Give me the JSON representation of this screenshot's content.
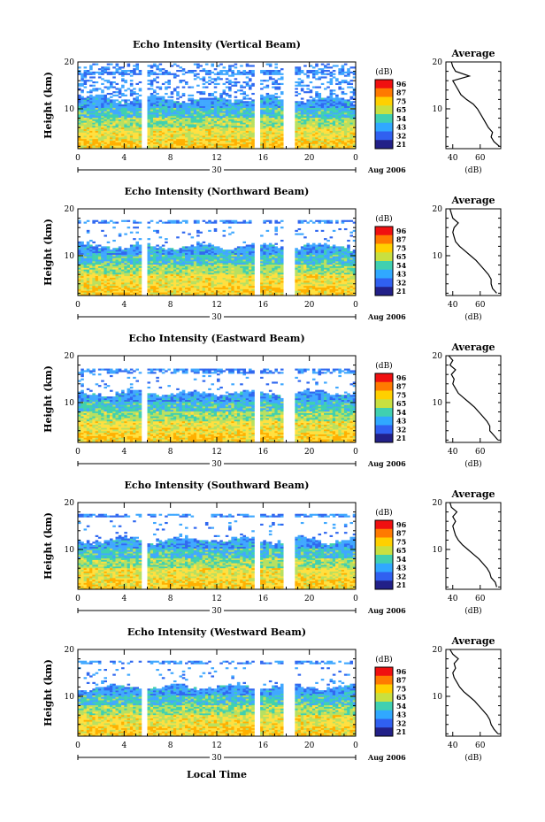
{
  "figure": {
    "colorbar_unit": "(dB)",
    "colorbar_ticks": [
      "96",
      "87",
      "75",
      "65",
      "54",
      "43",
      "32",
      "21"
    ],
    "colorbar_colors": [
      "#f01010",
      "#ff7a00",
      "#ffd000",
      "#c8e040",
      "#40d0b0",
      "#30a8ff",
      "#3060f0",
      "#222088"
    ],
    "heatmap_colors": {
      "strong": "#ffb000",
      "high": "#ffe040",
      "mid": "#b8e060",
      "midlow": "#40d0b0",
      "low": "#40a8ff",
      "weak": "#3068f0"
    },
    "xlabel": "Local Time",
    "date_label": "Aug 2006",
    "date_day": "30",
    "avg_title": "Average",
    "avg_xlabel": "(dB)"
  },
  "chart_data": [
    {
      "type": "heatmap",
      "title": "Echo Intensity (Vertical Beam)",
      "ylabel": "Height (km)",
      "x_ticks": [
        "0",
        "4",
        "8",
        "12",
        "16",
        "20",
        "0"
      ],
      "y_ticks": [
        "20",
        "10"
      ],
      "xlim": [
        0,
        24
      ],
      "ylim": [
        1.5,
        20
      ],
      "data_gaps_hours": [
        [
          5.6,
          5.9
        ],
        [
          15.4,
          15.7
        ],
        [
          17.9,
          18.6
        ]
      ],
      "echo_top_km": 17.5,
      "average_profile": {
        "x_ticks": [
          "40",
          "60"
        ],
        "y_ticks": [
          "20",
          "10"
        ],
        "xlim": [
          35,
          75
        ],
        "height_km": [
          2,
          3,
          4,
          5,
          6,
          7,
          8,
          9,
          10,
          11,
          12,
          13,
          14,
          15,
          16,
          17,
          18,
          19,
          20
        ],
        "db": [
          74,
          70,
          68,
          69,
          66,
          64,
          62,
          60,
          58,
          55,
          50,
          46,
          44,
          42,
          40,
          52,
          42,
          40,
          39
        ]
      }
    },
    {
      "type": "heatmap",
      "title": "Echo Intensity (Northward Beam)",
      "ylabel": "Height (km)",
      "x_ticks": [
        "0",
        "4",
        "8",
        "12",
        "16",
        "20",
        "0"
      ],
      "y_ticks": [
        "20",
        "10"
      ],
      "xlim": [
        0,
        24
      ],
      "ylim": [
        1.5,
        20
      ],
      "data_gaps_hours": [
        [
          5.6,
          5.9
        ],
        [
          15.4,
          15.7
        ],
        [
          17.9,
          18.6
        ]
      ],
      "echo_top_km": 17.0,
      "average_profile": {
        "x_ticks": [
          "40",
          "60"
        ],
        "y_ticks": [
          "20",
          "10"
        ],
        "xlim": [
          35,
          75
        ],
        "height_km": [
          2,
          3,
          4,
          5,
          6,
          7,
          8,
          9,
          10,
          11,
          12,
          13,
          14,
          15,
          16,
          17,
          18,
          19,
          20
        ],
        "db": [
          72,
          69,
          68,
          68,
          66,
          63,
          60,
          57,
          53,
          49,
          45,
          42,
          41,
          40,
          41,
          44,
          40,
          39,
          38
        ]
      }
    },
    {
      "type": "heatmap",
      "title": "Echo Intensity (Eastward Beam)",
      "ylabel": "Height (km)",
      "x_ticks": [
        "0",
        "4",
        "8",
        "12",
        "16",
        "20",
        "0"
      ],
      "y_ticks": [
        "20",
        "10"
      ],
      "xlim": [
        0,
        24
      ],
      "ylim": [
        1.5,
        20
      ],
      "data_gaps_hours": [
        [
          5.6,
          5.9
        ],
        [
          15.4,
          15.7
        ],
        [
          17.9,
          18.6
        ]
      ],
      "echo_top_km": 16.5,
      "average_profile": {
        "x_ticks": [
          "40",
          "60"
        ],
        "y_ticks": [
          "20",
          "10"
        ],
        "xlim": [
          35,
          75
        ],
        "height_km": [
          2,
          3,
          4,
          5,
          6,
          7,
          8,
          9,
          10,
          11,
          12,
          13,
          14,
          15,
          16,
          17,
          18,
          19,
          20
        ],
        "db": [
          73,
          70,
          67,
          67,
          65,
          62,
          59,
          56,
          52,
          48,
          44,
          42,
          40,
          41,
          39,
          42,
          38,
          40,
          37
        ]
      }
    },
    {
      "type": "heatmap",
      "title": "Echo Intensity (Southward Beam)",
      "ylabel": "Height (km)",
      "x_ticks": [
        "0",
        "4",
        "8",
        "12",
        "16",
        "20",
        "0"
      ],
      "y_ticks": [
        "20",
        "10"
      ],
      "xlim": [
        0,
        24
      ],
      "ylim": [
        1.5,
        20
      ],
      "data_gaps_hours": [
        [
          5.6,
          5.9
        ],
        [
          15.4,
          15.7
        ],
        [
          17.9,
          18.6
        ]
      ],
      "echo_top_km": 17.0,
      "average_profile": {
        "x_ticks": [
          "40",
          "60"
        ],
        "y_ticks": [
          "20",
          "10"
        ],
        "xlim": [
          35,
          75
        ],
        "height_km": [
          2,
          3,
          4,
          5,
          6,
          7,
          8,
          9,
          10,
          11,
          12,
          13,
          14,
          15,
          16,
          17,
          18,
          19,
          20
        ],
        "db": [
          72,
          71,
          68,
          67,
          65,
          62,
          59,
          55,
          51,
          47,
          44,
          42,
          41,
          40,
          42,
          40,
          43,
          39,
          38
        ]
      }
    },
    {
      "type": "heatmap",
      "title": "Echo Intensity (Westward Beam)",
      "ylabel": "Height (km)",
      "x_ticks": [
        "0",
        "4",
        "8",
        "12",
        "16",
        "20",
        "0"
      ],
      "y_ticks": [
        "20",
        "10"
      ],
      "xlim": [
        0,
        24
      ],
      "ylim": [
        1.5,
        20
      ],
      "data_gaps_hours": [
        [
          5.6,
          5.9
        ],
        [
          15.4,
          15.7
        ],
        [
          17.9,
          18.6
        ]
      ],
      "echo_top_km": 17.0,
      "average_profile": {
        "x_ticks": [
          "40",
          "60"
        ],
        "y_ticks": [
          "20",
          "10"
        ],
        "xlim": [
          35,
          75
        ],
        "height_km": [
          2,
          3,
          4,
          5,
          6,
          7,
          8,
          9,
          10,
          11,
          12,
          13,
          14,
          15,
          16,
          17,
          18,
          19,
          20
        ],
        "db": [
          73,
          70,
          68,
          67,
          65,
          62,
          59,
          56,
          52,
          48,
          45,
          43,
          41,
          40,
          42,
          41,
          44,
          40,
          38
        ]
      }
    }
  ]
}
